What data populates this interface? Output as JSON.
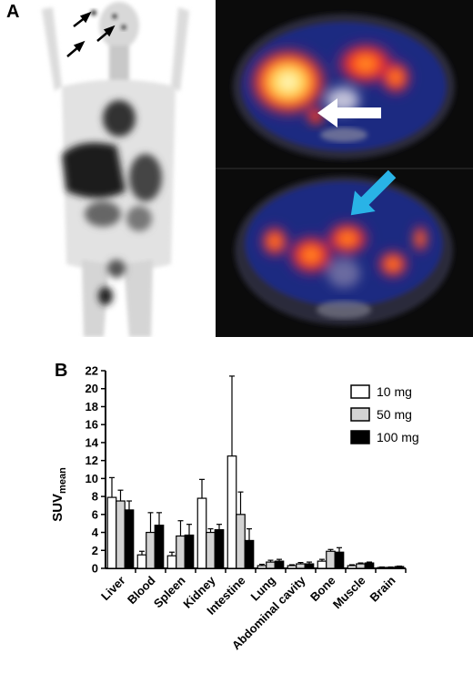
{
  "panels": {
    "a_label": "A",
    "b_label": "B"
  },
  "colors": {
    "bar_10mg": "#ffffff",
    "bar_50mg": "#d3d3d3",
    "bar_100mg": "#000000",
    "arrow_black": "#000000",
    "arrow_white": "#ffffff",
    "arrow_cyan": "#29b3e6",
    "pet_background": "#0b0b0b"
  },
  "images": {
    "mip_description_icon": "whole-body-pet-mip",
    "pet_ct_description_icon": "pet-ct-axial-slices"
  },
  "chart_data": {
    "type": "bar",
    "categories": [
      "Liver",
      "Blood",
      "Spleen",
      "Kidney",
      "Intestine",
      "Lung",
      "Abdominal cavity",
      "Bone",
      "Muscle",
      "Brain"
    ],
    "series": [
      {
        "name": "10 mg",
        "values": [
          7.9,
          1.5,
          1.4,
          7.8,
          12.5,
          0.3,
          0.3,
          0.8,
          0.3,
          0.1
        ],
        "errors": [
          2.2,
          0.4,
          0.4,
          2.1,
          8.9,
          0.15,
          0.1,
          0.2,
          0.1,
          0.05
        ]
      },
      {
        "name": "50 mg",
        "values": [
          7.5,
          4.0,
          3.6,
          4.0,
          6.0,
          0.7,
          0.5,
          1.9,
          0.5,
          0.1
        ],
        "errors": [
          1.2,
          2.2,
          1.7,
          0.4,
          2.5,
          0.2,
          0.15,
          0.2,
          0.1,
          0.05
        ]
      },
      {
        "name": "100 mg",
        "values": [
          6.5,
          4.8,
          3.7,
          4.3,
          3.1,
          0.8,
          0.5,
          1.8,
          0.6,
          0.2
        ],
        "errors": [
          1.0,
          1.4,
          1.2,
          0.6,
          1.3,
          0.2,
          0.2,
          0.5,
          0.1,
          0.05
        ]
      }
    ],
    "ylabel": "SUV",
    "ylabel_sub": "mean",
    "ylim": [
      0,
      22
    ],
    "yticks": [
      0,
      2,
      4,
      6,
      8,
      10,
      12,
      14,
      16,
      18,
      20,
      22
    ],
    "legend_placement": "top-right",
    "grid": false
  }
}
